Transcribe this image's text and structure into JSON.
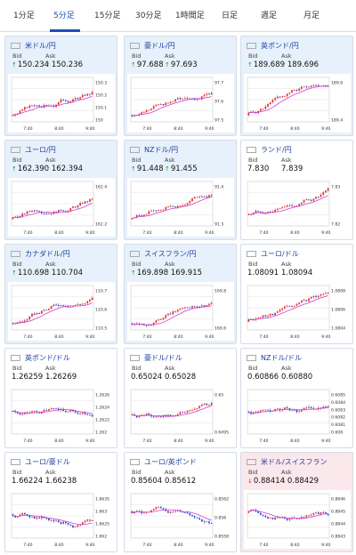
{
  "tabs": [
    {
      "label": "1分足",
      "active": false
    },
    {
      "label": "5分足",
      "active": true
    },
    {
      "label": "15分足",
      "active": false
    },
    {
      "label": "30分足",
      "active": false
    },
    {
      "label": "1時間足",
      "active": false
    },
    {
      "label": "日足",
      "active": false
    },
    {
      "label": "週足",
      "active": false
    },
    {
      "label": "月足",
      "active": false
    }
  ],
  "bid_label": "Bid",
  "ask_label": "Ask",
  "cards": [
    {
      "pair": "米ドル/円",
      "bid": "150.234",
      "ask": "150.236",
      "dir": "up",
      "flag": "us",
      "hl": "blue",
      "yticks": [
        "150.3",
        "150.2",
        "150.1",
        "150"
      ],
      "xticks": [
        "7:40",
        "8:40",
        "9:40"
      ]
    },
    {
      "pair": "豪ドル/円",
      "bid": "97.688",
      "ask": "97.693",
      "dir": "up",
      "flag": "au",
      "hl": "blue",
      "yticks": [
        "97.7",
        "97.6",
        "97.5"
      ],
      "xticks": [
        "7:40",
        "8:40",
        "9:40"
      ]
    },
    {
      "pair": "英ポンド/円",
      "bid": "189.689",
      "ask": "189.696",
      "dir": "up",
      "flag": "uk",
      "hl": "blue",
      "yticks": [
        "189.6",
        "189.4"
      ],
      "xticks": [
        "7:40",
        "8:40",
        "9:40"
      ]
    },
    {
      "pair": "ユーロ/円",
      "bid": "162.390",
      "ask": "162.394",
      "dir": "up",
      "flag": "eu",
      "hl": "blue",
      "yticks": [
        "162.4",
        "162.2"
      ],
      "xticks": [
        "7:40",
        "8:40",
        "9:40"
      ]
    },
    {
      "pair": "NZドル/円",
      "bid": "91.448",
      "ask": "91.455",
      "dir": "up",
      "flag": "nz",
      "hl": "blue",
      "yticks": [
        "91.4",
        "91.3"
      ],
      "xticks": [
        "7:40",
        "8:40",
        "9:40"
      ]
    },
    {
      "pair": "ランド/円",
      "bid": "7.830",
      "ask": "7.839",
      "dir": "none",
      "flag": "za",
      "hl": "plain",
      "yticks": [
        "7.83",
        "7.82"
      ],
      "xticks": [
        "7:40",
        "8:40",
        "9:40"
      ]
    },
    {
      "pair": "カナダドル/円",
      "bid": "110.698",
      "ask": "110.704",
      "dir": "up",
      "flag": "ca",
      "hl": "blue",
      "yticks": [
        "110.7",
        "110.6",
        "110.5"
      ],
      "xticks": [
        "7:40",
        "8:40",
        "9:40"
      ]
    },
    {
      "pair": "スイスフラン/円",
      "bid": "169.898",
      "ask": "169.915",
      "dir": "up",
      "flag": "ch",
      "hl": "blue",
      "yticks": [
        "169.8",
        "169.6"
      ],
      "xticks": [
        "7:40",
        "8:40",
        "9:40"
      ]
    },
    {
      "pair": "ユーロ/ドル",
      "bid": "1.08091",
      "ask": "1.08094",
      "dir": "none",
      "flag": "eu",
      "hl": "plain",
      "yticks": [
        "1.0808",
        "1.0806",
        "1.0804"
      ],
      "xticks": [
        "7:40",
        "8:40",
        "9:40"
      ]
    },
    {
      "pair": "英ポンド/ドル",
      "bid": "1.26259",
      "ask": "1.26269",
      "dir": "none",
      "flag": "uk",
      "hl": "plain",
      "yticks": [
        "1.2626",
        "1.2624",
        "1.2622",
        "1.262"
      ],
      "xticks": [
        "7:40",
        "8:40",
        "9:40"
      ]
    },
    {
      "pair": "豪ドル/ドル",
      "bid": "0.65024",
      "ask": "0.65028",
      "dir": "none",
      "flag": "au",
      "hl": "plain",
      "yticks": [
        "0.65",
        "0.6495"
      ],
      "xticks": [
        "7:40",
        "8:40",
        "9:40"
      ]
    },
    {
      "pair": "NZドル/ドル",
      "bid": "0.60866",
      "ask": "0.60880",
      "dir": "none",
      "flag": "nz",
      "hl": "plain",
      "yticks": [
        "0.6085",
        "0.6084",
        "0.6083",
        "0.6082",
        "0.6081",
        "0.608"
      ],
      "xticks": [
        "7:40",
        "8:40",
        "9:40"
      ]
    },
    {
      "pair": "ユーロ/豪ドル",
      "bid": "1.66224",
      "ask": "1.66238",
      "dir": "none",
      "flag": "eu",
      "hl": "plain",
      "yticks": [
        "1.6635",
        "1.663",
        "1.6625",
        "1.662"
      ],
      "xticks": [
        "7:40",
        "8:40",
        "9:40"
      ]
    },
    {
      "pair": "ユーロ/英ポンド",
      "bid": "0.85604",
      "ask": "0.85612",
      "dir": "none",
      "flag": "eu",
      "hl": "plain",
      "yticks": [
        "0.8562",
        "0.856",
        "0.8558"
      ],
      "xticks": [
        "7:40",
        "8:40",
        "9:40"
      ]
    },
    {
      "pair": "米ドル/スイスフラン",
      "bid": "0.88414",
      "ask": "0.88429",
      "dir": "down",
      "flag": "us",
      "hl": "pink",
      "yticks": [
        "0.8846",
        "0.8845",
        "0.8844",
        "0.8843"
      ],
      "xticks": [
        "7:40",
        "8:40",
        "9:40"
      ]
    }
  ],
  "colors": {
    "accent": "#1d4fb8",
    "candle_up": "#e03030",
    "candle_down": "#2a49c8",
    "ma": "#d23dd2",
    "grid": "#e3e3e3",
    "highlight_blue": "#e7f1fb",
    "highlight_pink": "#fbe8ec"
  }
}
